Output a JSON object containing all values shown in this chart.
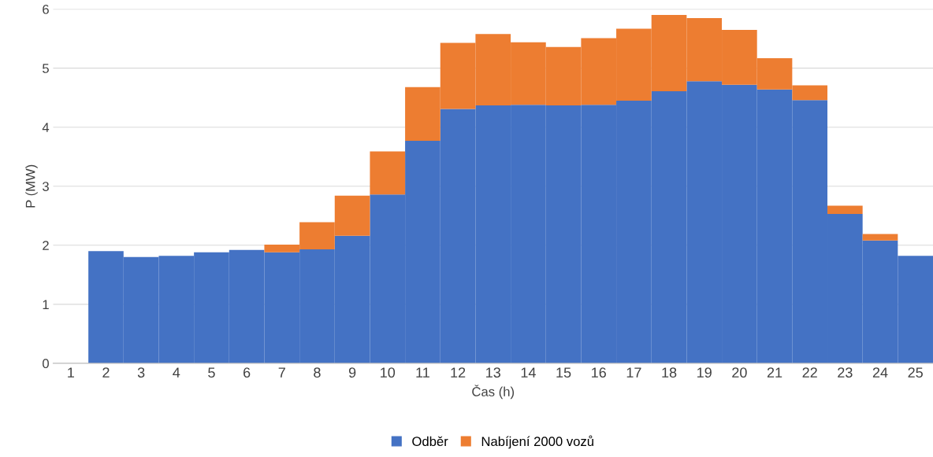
{
  "chart_data": {
    "type": "bar",
    "stacked": true,
    "xlabel": "Čas (h)",
    "ylabel": "P (MW)",
    "categories": [
      "1",
      "2",
      "3",
      "4",
      "5",
      "6",
      "7",
      "8",
      "9",
      "10",
      "11",
      "12",
      "13",
      "14",
      "15",
      "16",
      "17",
      "18",
      "19",
      "20",
      "21",
      "22",
      "23",
      "24",
      "25"
    ],
    "series": [
      {
        "name": "Odběr",
        "color": "#4472c4",
        "values": [
          null,
          1.9,
          1.8,
          1.82,
          1.88,
          1.92,
          1.88,
          1.93,
          2.16,
          2.86,
          3.77,
          4.31,
          4.37,
          4.38,
          4.37,
          4.38,
          4.45,
          4.61,
          4.78,
          4.72,
          4.64,
          4.46,
          2.53,
          2.08,
          1.82
        ]
      },
      {
        "name": "Nabíjení 2000 vozů",
        "color": "#ed7d31",
        "values": [
          null,
          0,
          0,
          0,
          0,
          0,
          0.13,
          0.46,
          0.68,
          0.73,
          0.91,
          1.12,
          1.21,
          1.06,
          0.99,
          1.13,
          1.22,
          1.29,
          1.07,
          0.93,
          0.53,
          0.25,
          0.14,
          0.11,
          0
        ]
      }
    ],
    "ylim": [
      0,
      6
    ],
    "yticks": [
      0,
      1,
      2,
      3,
      4,
      5,
      6
    ],
    "grid": "y",
    "legend": "bottom"
  }
}
